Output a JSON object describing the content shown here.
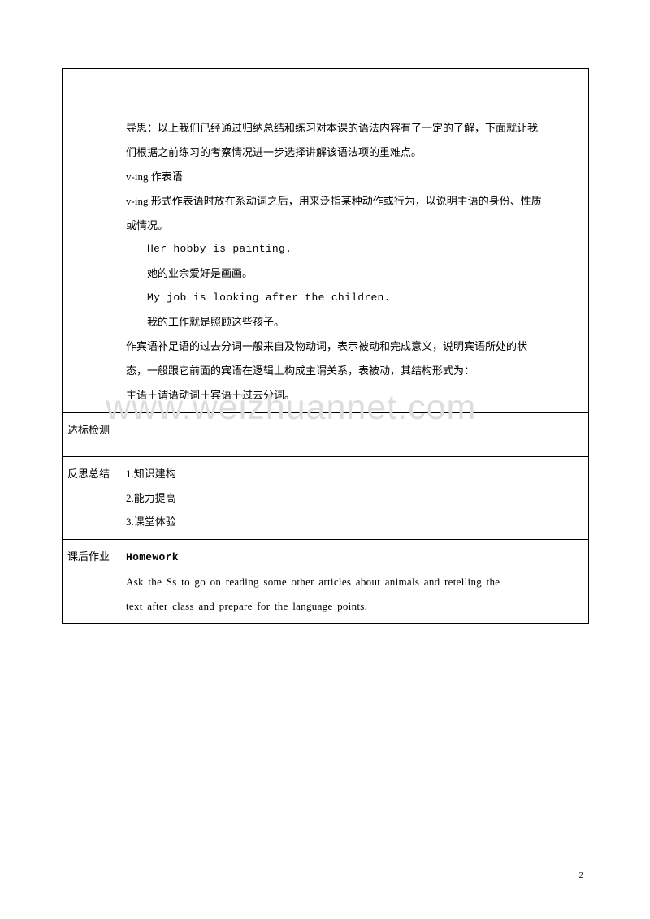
{
  "watermark": "www.weizhuannet.com",
  "pagenum": "2",
  "row1": {
    "label": "",
    "lines": [
      {
        "cls": "para",
        "text": "导思：以上我们已经通过归纳总结和练习对本课的语法内容有了一定的了解，下面就让我"
      },
      {
        "cls": "para",
        "text": "们根据之前练习的考察情况进一步选择讲解该语法项的重难点。"
      },
      {
        "cls": "para",
        "text": "v-ing 作表语"
      },
      {
        "cls": "para",
        "text": "v-ing 形式作表语时放在系动词之后，用来泛指某种动作或行为，以说明主语的身份、性质"
      },
      {
        "cls": "para",
        "text": "或情况。"
      },
      {
        "cls": "indent1 eng",
        "text": "Her hobby is painting."
      },
      {
        "cls": "indent1",
        "text": "她的业余爱好是画画。"
      },
      {
        "cls": "indent1 eng",
        "text": "My job is looking after the children."
      },
      {
        "cls": "indent1",
        "text": "我的工作就是照顾这些孩子。"
      },
      {
        "cls": "para",
        "text": "作宾语补足语的过去分词一般来自及物动词，表示被动和完成意义，说明宾语所处的状"
      },
      {
        "cls": "para",
        "text": "态，一般跟它前面的宾语在逻辑上构成主谓关系，表被动，其结构形式为："
      },
      {
        "cls": "para",
        "text": "主语＋谓语动词＋宾语＋过去分词。"
      }
    ]
  },
  "row2": {
    "label": "达标检测",
    "content": ""
  },
  "row3": {
    "label": "反思总结",
    "lines": [
      {
        "cls": "para",
        "text": " 1.知识建构"
      },
      {
        "cls": "para",
        "text": "2.能力提高"
      },
      {
        "cls": "para",
        "text": "3.课堂体验"
      }
    ]
  },
  "row4": {
    "label": "课后作业",
    "lines": [
      {
        "cls": "para bold eng",
        "text": "Homework"
      },
      {
        "cls": "para homework-eng",
        "text": "Ask the Ss to go on reading some other articles about animals and retelling the"
      },
      {
        "cls": "para homework-eng",
        "text": "text after class and prepare for the language points."
      }
    ]
  }
}
